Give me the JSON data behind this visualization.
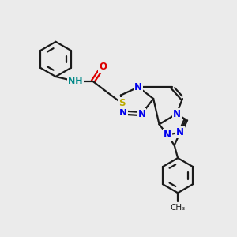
{
  "background_color": "#ebebeb",
  "bond_color": "#1a1a1a",
  "bond_lw": 1.6,
  "N_color": "#0000ee",
  "O_color": "#dd0000",
  "S_color": "#bbaa00",
  "NH_color": "#008888",
  "font_size": 8.5,
  "fig_width": 3.0,
  "fig_height": 3.0,
  "dpi": 100,
  "xlim": [
    0,
    10
  ],
  "ylim": [
    0,
    10
  ]
}
